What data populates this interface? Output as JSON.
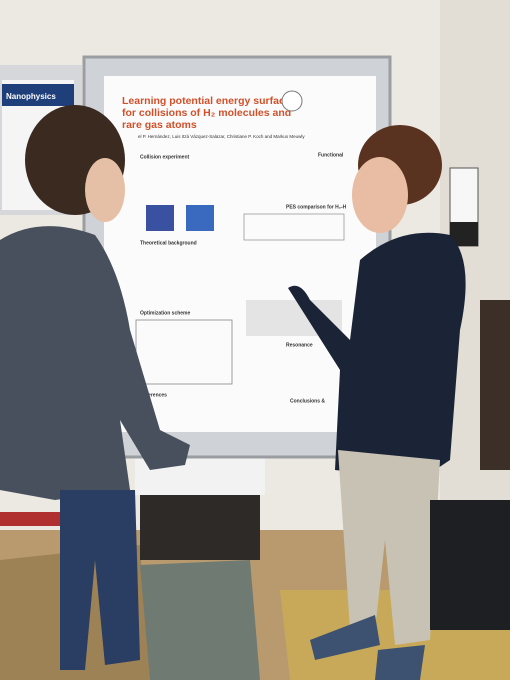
{
  "left_poster": {
    "title": "Nanophysics"
  },
  "poster": {
    "title_lines": [
      "Learning potential energy surfaces",
      "for collisions of H₂ molecules and",
      "rare gas atoms"
    ],
    "authors": "el P. Hernández, Luis Itzá Vázquez-Salazar, Christiane P. Koch and Markus Meuwly",
    "sections": [
      "Collision experiment",
      "Theoretical background",
      "Optimization scheme",
      "References",
      "Functional",
      "PES comparison for H₂-H",
      "Resonance",
      "Conclusions &"
    ]
  }
}
